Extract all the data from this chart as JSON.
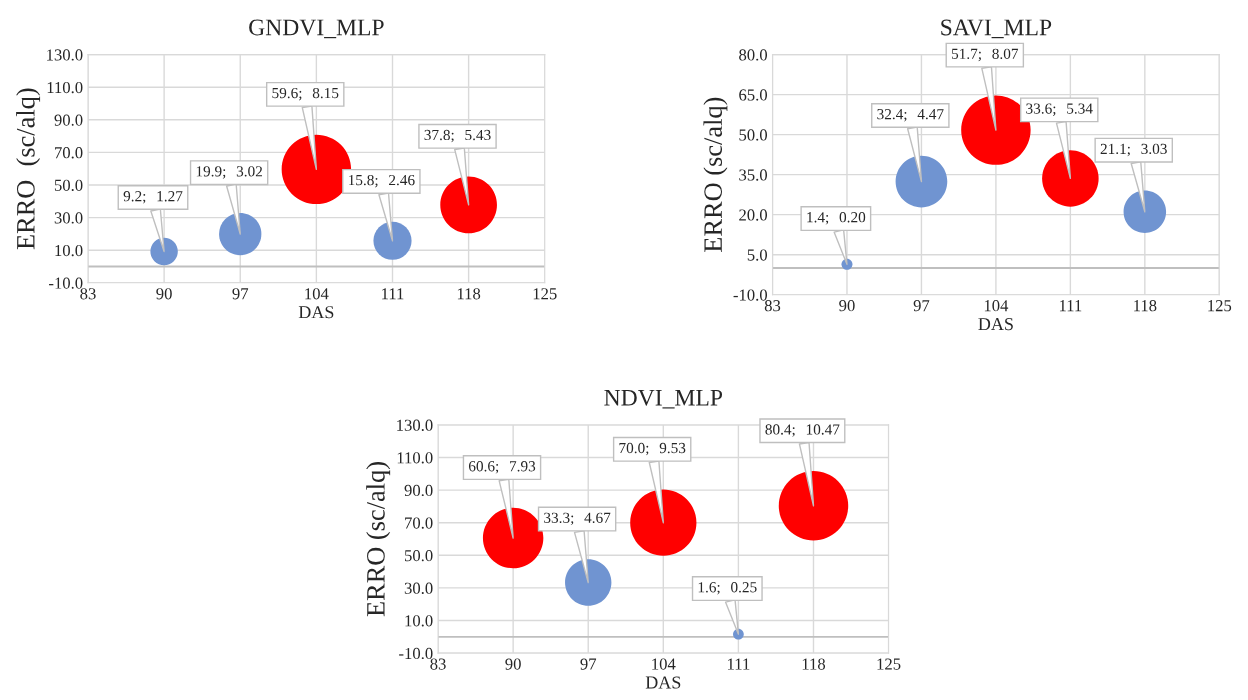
{
  "chart_data": [
    {
      "type": "bubble",
      "title": "GNDVI_MLP",
      "xlabel": "DAS",
      "ylabel": "ERRO  (sc/alq)",
      "x": [
        90,
        97,
        104,
        111,
        118
      ],
      "values": [
        9.2,
        19.9,
        59.6,
        15.8,
        37.8
      ],
      "sizes": [
        0.156,
        0.371,
        1,
        0.302,
        0.666
      ],
      "colors": [
        "#7094d1",
        "#7094d1",
        "#ff0000",
        "#7094d1",
        "#ff0000"
      ],
      "data_labels": true,
      "value_labels": [
        "9.2;  1.27",
        "19.9;  3.02",
        "59.6;  8.15",
        "15.8;  2.46",
        "37.8;  5.43"
      ],
      "xlim": [
        83,
        125
      ],
      "xticks": [
        83,
        90,
        97,
        104,
        111,
        118,
        125
      ],
      "ylim": [
        -10,
        130
      ],
      "yticks": [
        {
          "value": -10,
          "label": "-10.0"
        },
        {
          "value": 10,
          "label": "10.0"
        },
        {
          "value": 30,
          "label": "30.0"
        },
        {
          "value": 50,
          "label": "50.0"
        },
        {
          "value": 70,
          "label": "70.0"
        },
        {
          "value": 90,
          "label": "90.0"
        },
        {
          "value": 110,
          "label": "110.0"
        },
        {
          "value": 130,
          "label": "130.0"
        }
      ],
      "ref_lines": [
        {
          "axis": "y",
          "value": 0,
          "color": "#bfbfbf"
        }
      ],
      "grid": true,
      "legend": false
    },
    {
      "type": "bubble",
      "title": "SAVI_MLP",
      "xlabel": "DAS",
      "ylabel": "ERRO (sc/alq)",
      "x": [
        90,
        97,
        104,
        111,
        118
      ],
      "values": [
        1.4,
        32.4,
        51.7,
        33.6,
        21.1
      ],
      "sizes": [
        0.025,
        0.554,
        1,
        0.662,
        0.375
      ],
      "colors": [
        "#7094d1",
        "#7094d1",
        "#ff0000",
        "#ff0000",
        "#7094d1"
      ],
      "data_labels": true,
      "value_labels": [
        "1.4;  0.20",
        "32.4;  4.47",
        "51.7;  8.07",
        "33.6;  5.34",
        "21.1;  3.03"
      ],
      "xlim": [
        83,
        125
      ],
      "xticks": [
        83,
        90,
        97,
        104,
        111,
        118,
        125
      ],
      "ylim": [
        -10,
        80
      ],
      "yticks": [
        {
          "value": -10,
          "label": "-10.0"
        },
        {
          "value": 5,
          "label": "5.0"
        },
        {
          "value": 20,
          "label": "20.0"
        },
        {
          "value": 35,
          "label": "35.0"
        },
        {
          "value": 50,
          "label": "50.0"
        },
        {
          "value": 65,
          "label": "65.0"
        },
        {
          "value": 80,
          "label": "80.0"
        }
      ],
      "ref_lines": [
        {
          "axis": "y",
          "value": 0,
          "color": "#bfbfbf"
        }
      ],
      "grid": true,
      "legend": false
    },
    {
      "type": "bubble",
      "title": "NDVI_MLP",
      "xlabel": "DAS",
      "ylabel": "ERRO (sc/alq)",
      "x": [
        90,
        97,
        104,
        111,
        118
      ],
      "values": [
        60.6,
        33.3,
        70.0,
        1.6,
        80.4
      ],
      "sizes": [
        0.757,
        0.446,
        0.91,
        0.024,
        1
      ],
      "colors": [
        "#ff0000",
        "#7094d1",
        "#ff0000",
        "#7094d1",
        "#ff0000"
      ],
      "data_labels": true,
      "value_labels": [
        "60.6;  7.93",
        "33.3;  4.67",
        "70.0;  9.53",
        "1.6;  0.25",
        "80.4;  10.47"
      ],
      "xlim": [
        83,
        125
      ],
      "xticks": [
        83,
        90,
        97,
        104,
        111,
        118,
        125
      ],
      "ylim": [
        -10,
        130
      ],
      "yticks": [
        {
          "value": -10,
          "label": "-10.0"
        },
        {
          "value": 10,
          "label": "10.0"
        },
        {
          "value": 30,
          "label": "30.0"
        },
        {
          "value": 50,
          "label": "50.0"
        },
        {
          "value": 70,
          "label": "70.0"
        },
        {
          "value": 90,
          "label": "90.0"
        },
        {
          "value": 110,
          "label": "110.0"
        },
        {
          "value": 130,
          "label": "130.0"
        }
      ],
      "ref_lines": [
        {
          "axis": "y",
          "value": 0,
          "color": "#bfbfbf"
        }
      ],
      "grid": true,
      "legend": false
    }
  ]
}
